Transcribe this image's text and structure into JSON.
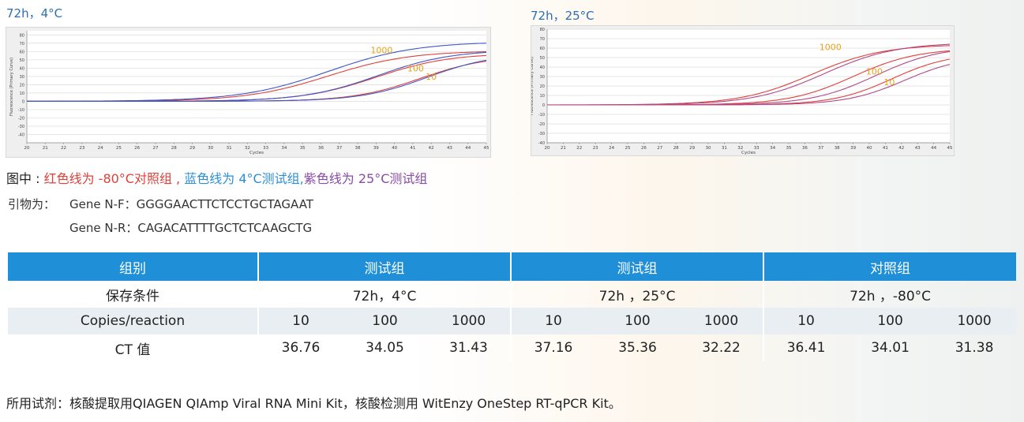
{
  "charts_header": {
    "left_title": "72h，4°C",
    "right_title": "72h，25°C"
  },
  "chart_data": [
    {
      "type": "line",
      "title": "72h，4°C",
      "xlabel": "Cycles",
      "ylabel": "Fluorescence (Primary Curve)",
      "xlim": [
        20,
        45
      ],
      "ylim": [
        -50,
        85
      ],
      "x_ticks": [
        "20",
        "21",
        "22",
        "23",
        "24",
        "25",
        "26",
        "27",
        "28",
        "29",
        "30",
        "31",
        "32",
        "33",
        "34",
        "35",
        "36",
        "37",
        "38",
        "39",
        "40",
        "41",
        "42",
        "43",
        "44",
        "45"
      ],
      "y_ticks": [
        "80",
        "70",
        "60",
        "50",
        "40",
        "30",
        "20",
        "10",
        "0",
        "-10",
        "-20",
        "-30",
        "-40"
      ],
      "grid": true,
      "annotations": [
        "1000",
        "100",
        "10"
      ],
      "series": [
        {
          "color": "#e0403a",
          "ct": 31.4,
          "plateau": 61,
          "slope": 0.45
        },
        {
          "color": "#3c57c9",
          "ct": 31.4,
          "plateau": 72,
          "slope": 0.42
        },
        {
          "color": "#e0403a",
          "ct": 34.0,
          "plateau": 58,
          "slope": 0.5
        },
        {
          "color": "#3c57c9",
          "ct": 34.1,
          "plateau": 62,
          "slope": 0.5
        },
        {
          "color": "#e0403a",
          "ct": 36.4,
          "plateau": 55,
          "slope": 0.55
        },
        {
          "color": "#3c57c9",
          "ct": 36.8,
          "plateau": 58,
          "slope": 0.55
        }
      ]
    },
    {
      "type": "line",
      "title": "72h，25°C",
      "xlabel": "Cycles",
      "ylabel": "Fluorescence (Primary Curve)",
      "xlim": [
        20,
        45
      ],
      "ylim": [
        -40,
        80
      ],
      "x_ticks": [
        "20",
        "21",
        "22",
        "23",
        "24",
        "25",
        "26",
        "27",
        "28",
        "29",
        "30",
        "31",
        "32",
        "33",
        "34",
        "35",
        "36",
        "37",
        "38",
        "39",
        "40",
        "41",
        "42",
        "43",
        "44",
        "45"
      ],
      "y_ticks": [
        "80",
        "70",
        "60",
        "50",
        "40",
        "30",
        "20",
        "10",
        "0",
        "-10",
        "-20",
        "-30",
        "-40"
      ],
      "grid": true,
      "annotations": [
        "1000",
        "100",
        "10"
      ],
      "series": [
        {
          "color": "#e0403a",
          "ct": 31.4,
          "plateau": 64,
          "slope": 0.45
        },
        {
          "color": "#b04a88",
          "ct": 32.2,
          "plateau": 66,
          "slope": 0.45
        },
        {
          "color": "#e0403a",
          "ct": 34.0,
          "plateau": 60,
          "slope": 0.5
        },
        {
          "color": "#b04a88",
          "ct": 35.4,
          "plateau": 62,
          "slope": 0.5
        },
        {
          "color": "#e0403a",
          "ct": 36.4,
          "plateau": 55,
          "slope": 0.55
        },
        {
          "color": "#b04a88",
          "ct": 37.2,
          "plateau": 52,
          "slope": 0.55
        }
      ]
    }
  ],
  "legend": {
    "prefix": "图中 : ",
    "red_text": "红色线为 -80°C对照组 , ",
    "blue_text": "蓝色线为 4°C测试组,",
    "purple_text": "紫色线为 25°C测试组",
    "prefix_color": "#222222",
    "red_color": "#e0403a",
    "blue_color": "#2b8fd8",
    "purple_color": "#8a4aa8"
  },
  "primers": {
    "label": "引物为：",
    "forward": "Gene N-F：GGGGAACTTCTCCTGCTAGAAT",
    "reverse": "Gene N-R：CAGACATTTTGCTCTCAAGCTG"
  },
  "table": {
    "header": [
      "组别",
      "测试组",
      "测试组",
      "对照组"
    ],
    "condition_label": "保存条件",
    "conditions": [
      "72h，4°C",
      "72h ，25°C",
      "72h ，-80°C"
    ],
    "copies_label": "Copies/reaction",
    "copies": [
      "10",
      "100",
      "1000",
      "10",
      "100",
      "1000",
      "10",
      "100",
      "1000"
    ],
    "ct_label": "CT 值",
    "ct_values": [
      "36.76",
      "34.05",
      "31.43",
      "37.16",
      "35.36",
      "32.22",
      "36.41",
      "34.01",
      "31.38"
    ]
  },
  "footer": "所用试剂：核酸提取用QIAGEN QIAmp Viral RNA Mini Kit，核酸检测用 WitEnzy OneStep RT-qPCR Kit。"
}
